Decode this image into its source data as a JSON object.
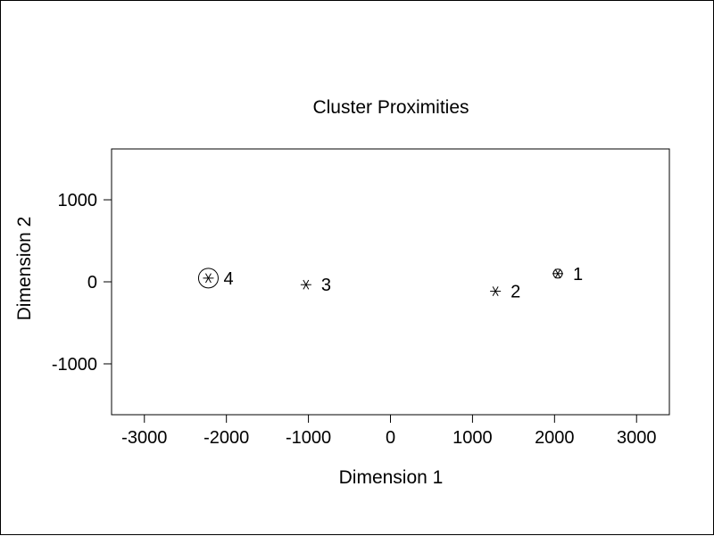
{
  "chart_data": {
    "type": "scatter",
    "title": "Cluster Proximities",
    "xlabel": "Dimension 1",
    "ylabel": "Dimension 2",
    "xlim": [
      -3400,
      3400
    ],
    "ylim": [
      -1620,
      1620
    ],
    "xticks": [
      -3000,
      -2000,
      -1000,
      0,
      1000,
      2000,
      3000
    ],
    "yticks": [
      1000,
      0,
      -1000
    ],
    "grid": false,
    "points": [
      {
        "label": "1",
        "x": 2040,
        "y": 100,
        "size": "small"
      },
      {
        "label": "2",
        "x": 1280,
        "y": -115,
        "size": "none"
      },
      {
        "label": "3",
        "x": -1030,
        "y": -35,
        "size": "none"
      },
      {
        "label": "4",
        "x": -2220,
        "y": 45,
        "size": "large"
      }
    ]
  }
}
